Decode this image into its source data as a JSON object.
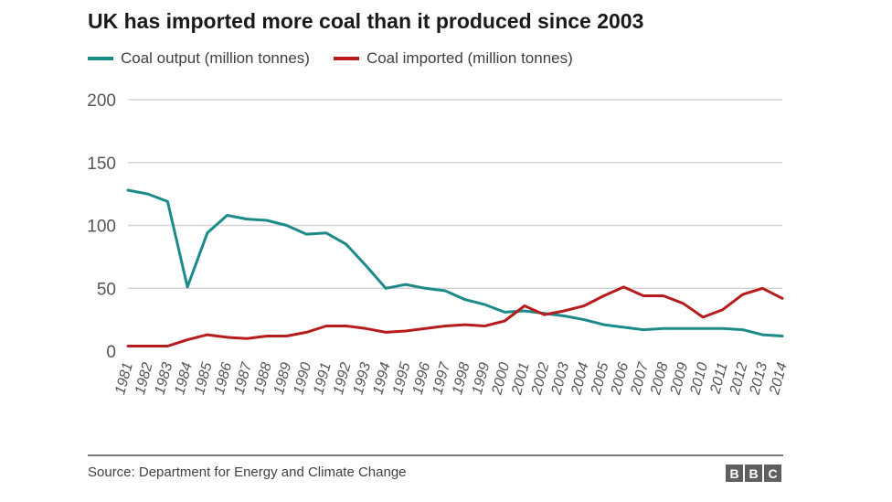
{
  "colors": {
    "output": "#1d8a8a",
    "imported": "#b71c1c",
    "grid": "#d3d3d3",
    "axis_text": "#555555"
  },
  "chart_data": {
    "type": "line",
    "title": "UK has imported more coal than it produced since 2003",
    "xlabel": "",
    "ylabel": "",
    "ylim": [
      0,
      200
    ],
    "yticks": [
      0,
      50,
      100,
      150,
      200
    ],
    "grid": true,
    "legend_position": "top-left",
    "x": [
      "1981",
      "1982",
      "1983",
      "1984",
      "1985",
      "1986",
      "1987",
      "1988",
      "1989",
      "1990",
      "1991",
      "1992",
      "1993",
      "1994",
      "1995",
      "1996",
      "1997",
      "1998",
      "1999",
      "2000",
      "2001",
      "2002",
      "2003",
      "2004",
      "2005",
      "2006",
      "2007",
      "2008",
      "2009",
      "2010",
      "2011",
      "2012",
      "2013",
      "2014"
    ],
    "series": [
      {
        "name": "Coal output (million tonnes)",
        "color": "#1d8a8a",
        "values": [
          128,
          125,
          119,
          51,
          94,
          108,
          105,
          104,
          100,
          93,
          94,
          85,
          68,
          50,
          53,
          50,
          48,
          41,
          37,
          31,
          32,
          30,
          28,
          25,
          21,
          19,
          17,
          18,
          18,
          18,
          18,
          17,
          13,
          12
        ]
      },
      {
        "name": "Coal imported (million tonnes)",
        "color": "#b71c1c",
        "values": [
          4,
          4,
          4,
          9,
          13,
          11,
          10,
          12,
          12,
          15,
          20,
          20,
          18,
          15,
          16,
          18,
          20,
          21,
          20,
          24,
          36,
          29,
          32,
          36,
          44,
          51,
          44,
          44,
          38,
          27,
          33,
          45,
          50,
          42
        ]
      }
    ]
  },
  "footer": {
    "source": "Source: Department for Energy and Climate Change",
    "logo_letters": [
      "B",
      "B",
      "C"
    ]
  }
}
